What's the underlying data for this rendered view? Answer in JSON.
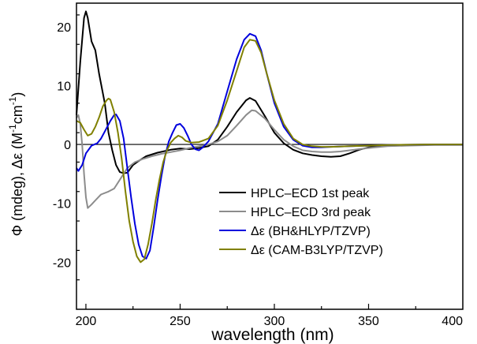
{
  "chart_data": {
    "type": "line",
    "title": "",
    "xlabel": "wavelength (nm)",
    "ylabel": {
      "prefix": "Φ (mdeg), Δε (M",
      "sup1": "-1",
      "mid": "cm",
      "sup2": "-1",
      "suffix": ")"
    },
    "xlim": [
      195,
      400
    ],
    "ylim": [
      -28,
      24
    ],
    "xticks": [
      200,
      250,
      300,
      350,
      400
    ],
    "yticks": [
      -20,
      -10,
      0,
      10,
      20
    ],
    "grid": false,
    "legend_position": "lower-right",
    "zero_line": true,
    "series": [
      {
        "name": "HPLC–ECD 1st peak",
        "color": "#000000",
        "points": [
          [
            195,
            5
          ],
          [
            197,
            14
          ],
          [
            199,
            21.5
          ],
          [
            200,
            22.6
          ],
          [
            201,
            21.5
          ],
          [
            203,
            17.5
          ],
          [
            205,
            16
          ],
          [
            207,
            12
          ],
          [
            210,
            7
          ],
          [
            212,
            2
          ],
          [
            214,
            -1
          ],
          [
            216,
            -3.5
          ],
          [
            218,
            -4.7
          ],
          [
            220,
            -4.9
          ],
          [
            222,
            -4.8
          ],
          [
            225,
            -3.5
          ],
          [
            228,
            -2.8
          ],
          [
            232,
            -2
          ],
          [
            238,
            -1.4
          ],
          [
            245,
            -0.9
          ],
          [
            250,
            -0.7
          ],
          [
            255,
            -0.8
          ],
          [
            260,
            -0.6
          ],
          [
            265,
            -0.3
          ],
          [
            270,
            0.8
          ],
          [
            275,
            3
          ],
          [
            280,
            5.5
          ],
          [
            285,
            7.5
          ],
          [
            287,
            7.9
          ],
          [
            290,
            7.4
          ],
          [
            295,
            4.8
          ],
          [
            300,
            2
          ],
          [
            305,
            0.2
          ],
          [
            310,
            -0.9
          ],
          [
            315,
            -1.5
          ],
          [
            320,
            -1.8
          ],
          [
            325,
            -2
          ],
          [
            330,
            -2.1
          ],
          [
            335,
            -2
          ],
          [
            340,
            -1.5
          ],
          [
            345,
            -0.9
          ],
          [
            350,
            -0.5
          ],
          [
            360,
            -0.2
          ],
          [
            370,
            -0.1
          ],
          [
            385,
            0
          ],
          [
            400,
            0
          ]
        ]
      },
      {
        "name": "HPLC–ECD 3rd peak",
        "color": "#8c8c8c",
        "points": [
          [
            195,
            4.5
          ],
          [
            196,
            5
          ],
          [
            197,
            3.5
          ],
          [
            198,
            0
          ],
          [
            199,
            -5
          ],
          [
            200,
            -9
          ],
          [
            201,
            -10.8
          ],
          [
            203,
            -10.2
          ],
          [
            205,
            -9.5
          ],
          [
            208,
            -8.5
          ],
          [
            212,
            -8
          ],
          [
            215,
            -7.5
          ],
          [
            218,
            -6
          ],
          [
            222,
            -4
          ],
          [
            226,
            -3
          ],
          [
            230,
            -2.5
          ],
          [
            235,
            -2
          ],
          [
            240,
            -1.6
          ],
          [
            245,
            -1.3
          ],
          [
            250,
            -1
          ],
          [
            255,
            -0.6
          ],
          [
            260,
            -0.3
          ],
          [
            265,
            0
          ],
          [
            270,
            0.5
          ],
          [
            275,
            1.5
          ],
          [
            280,
            3.2
          ],
          [
            285,
            5
          ],
          [
            288,
            5.8
          ],
          [
            290,
            5.7
          ],
          [
            295,
            4.4
          ],
          [
            300,
            2.5
          ],
          [
            305,
            0.8
          ],
          [
            310,
            -0.3
          ],
          [
            315,
            -1
          ],
          [
            320,
            -1.2
          ],
          [
            325,
            -1.3
          ],
          [
            330,
            -1.3
          ],
          [
            335,
            -1.2
          ],
          [
            340,
            -1
          ],
          [
            345,
            -0.8
          ],
          [
            350,
            -0.6
          ],
          [
            360,
            -0.3
          ],
          [
            370,
            -0.2
          ],
          [
            385,
            -0.1
          ],
          [
            400,
            -0.1
          ]
        ]
      },
      {
        "name": "Δε (BH&HLYP/TZVP)",
        "color": "#0000dd",
        "points": [
          [
            195,
            -4
          ],
          [
            196,
            -4.5
          ],
          [
            198,
            -3.5
          ],
          [
            200,
            -1.5
          ],
          [
            203,
            -0.2
          ],
          [
            206,
            0.2
          ],
          [
            208,
            1
          ],
          [
            210,
            2.2
          ],
          [
            213,
            4
          ],
          [
            215,
            5
          ],
          [
            216,
            5.1
          ],
          [
            218,
            4
          ],
          [
            220,
            1
          ],
          [
            222,
            -4
          ],
          [
            224,
            -9
          ],
          [
            226,
            -13.5
          ],
          [
            228,
            -17
          ],
          [
            230,
            -19
          ],
          [
            232,
            -19.4
          ],
          [
            234,
            -18
          ],
          [
            236,
            -14
          ],
          [
            238,
            -9.5
          ],
          [
            240,
            -5.5
          ],
          [
            242,
            -2
          ],
          [
            244,
            0.5
          ],
          [
            246,
            2
          ],
          [
            248,
            3.3
          ],
          [
            250,
            3.5
          ],
          [
            252,
            2.8
          ],
          [
            254,
            1.5
          ],
          [
            256,
            0
          ],
          [
            258,
            -0.8
          ],
          [
            260,
            -1
          ],
          [
            262,
            -0.5
          ],
          [
            265,
            0.5
          ],
          [
            270,
            3.5
          ],
          [
            275,
            9
          ],
          [
            280,
            14.5
          ],
          [
            284,
            17.8
          ],
          [
            287,
            18.8
          ],
          [
            290,
            18.4
          ],
          [
            293,
            16
          ],
          [
            296,
            12
          ],
          [
            300,
            7
          ],
          [
            305,
            3
          ],
          [
            310,
            0.8
          ],
          [
            315,
            -0.2
          ],
          [
            320,
            -0.5
          ],
          [
            325,
            -0.5
          ],
          [
            330,
            -0.4
          ],
          [
            340,
            -0.3
          ],
          [
            350,
            -0.2
          ],
          [
            360,
            -0.1
          ],
          [
            380,
            0
          ],
          [
            400,
            0
          ]
        ]
      },
      {
        "name": "Δε (CAM-B3LYP/TZVP)",
        "color": "#808000",
        "points": [
          [
            195,
            4
          ],
          [
            197,
            3.7
          ],
          [
            199,
            2.5
          ],
          [
            201,
            1.5
          ],
          [
            203,
            1.8
          ],
          [
            205,
            3
          ],
          [
            207,
            4.6
          ],
          [
            209,
            6.5
          ],
          [
            211,
            7.5
          ],
          [
            212,
            7.8
          ],
          [
            213,
            7.6
          ],
          [
            215,
            5.5
          ],
          [
            217,
            2
          ],
          [
            219,
            -2.5
          ],
          [
            221,
            -8
          ],
          [
            223,
            -13
          ],
          [
            225,
            -16.5
          ],
          [
            227,
            -19
          ],
          [
            229,
            -20
          ],
          [
            231,
            -19.5
          ],
          [
            233,
            -17
          ],
          [
            235,
            -13.5
          ],
          [
            237,
            -9.5
          ],
          [
            239,
            -6
          ],
          [
            241,
            -3
          ],
          [
            243,
            -1
          ],
          [
            245,
            0.3
          ],
          [
            247,
            1
          ],
          [
            249,
            1.5
          ],
          [
            251,
            1.2
          ],
          [
            253,
            0.6
          ],
          [
            256,
            0.3
          ],
          [
            260,
            0.4
          ],
          [
            265,
            1
          ],
          [
            270,
            3.2
          ],
          [
            275,
            7.5
          ],
          [
            280,
            12.5
          ],
          [
            284,
            16.5
          ],
          [
            287,
            17.8
          ],
          [
            290,
            17.6
          ],
          [
            293,
            15.6
          ],
          [
            296,
            12
          ],
          [
            300,
            7.5
          ],
          [
            305,
            3.5
          ],
          [
            310,
            1
          ],
          [
            315,
            0
          ],
          [
            320,
            -0.3
          ],
          [
            325,
            -0.4
          ],
          [
            330,
            -0.4
          ],
          [
            340,
            -0.3
          ],
          [
            350,
            -0.2
          ],
          [
            360,
            -0.1
          ],
          [
            380,
            0
          ],
          [
            400,
            0
          ]
        ]
      }
    ]
  }
}
